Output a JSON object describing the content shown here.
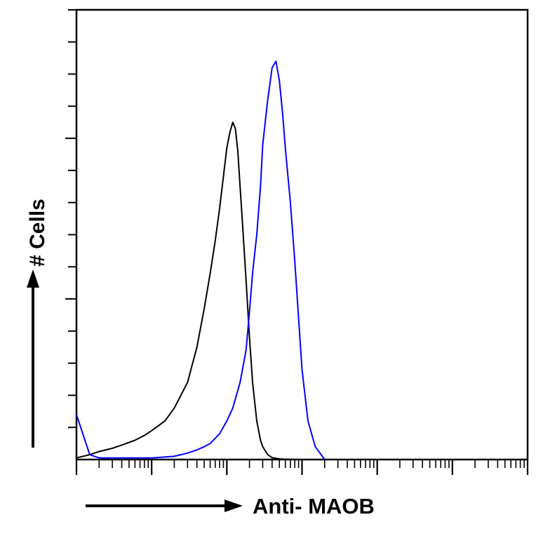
{
  "chart_data": {
    "type": "line",
    "title": "",
    "xlabel": "Anti- MAOB",
    "ylabel": "# Cells",
    "x_scale": "log",
    "xlim": [
      1,
      1000000
    ],
    "ylim": [
      0,
      140
    ],
    "grid": false,
    "legend": "none",
    "series": [
      {
        "color": "#000000",
        "x": [
          1,
          1.5,
          2,
          3,
          4,
          6,
          8,
          10,
          15,
          20,
          30,
          40,
          50,
          60,
          70,
          80,
          90,
          100,
          110,
          120,
          130,
          140,
          150,
          160,
          180,
          200,
          220,
          250,
          280,
          300,
          350,
          400,
          500,
          600,
          800,
          1000
        ],
        "y": [
          0.5,
          1.5,
          2.5,
          3.5,
          4.5,
          6,
          7.5,
          9,
          12,
          16,
          24,
          35,
          47,
          58,
          68,
          78,
          88,
          97,
          102,
          105,
          103,
          96,
          85,
          75,
          56,
          38,
          24,
          12,
          6,
          4,
          1.5,
          0.6,
          0.2,
          0.1,
          0,
          0
        ]
      },
      {
        "color": "#0000ff",
        "x": [
          1,
          1.5,
          2,
          3,
          5,
          10,
          20,
          30,
          40,
          50,
          60,
          80,
          100,
          120,
          150,
          180,
          200,
          220,
          250,
          280,
          300,
          350,
          400,
          450,
          500,
          550,
          600,
          700,
          800,
          900,
          1000,
          1200,
          1500,
          2000
        ],
        "y": [
          14,
          1.5,
          0.5,
          0.5,
          0.5,
          0.5,
          1,
          2,
          3,
          4,
          5,
          8,
          12,
          16,
          24,
          34,
          46,
          58,
          70,
          85,
          98,
          112,
          122,
          124,
          118,
          108,
          97,
          80,
          62,
          44,
          28,
          12,
          4,
          0
        ]
      }
    ]
  }
}
